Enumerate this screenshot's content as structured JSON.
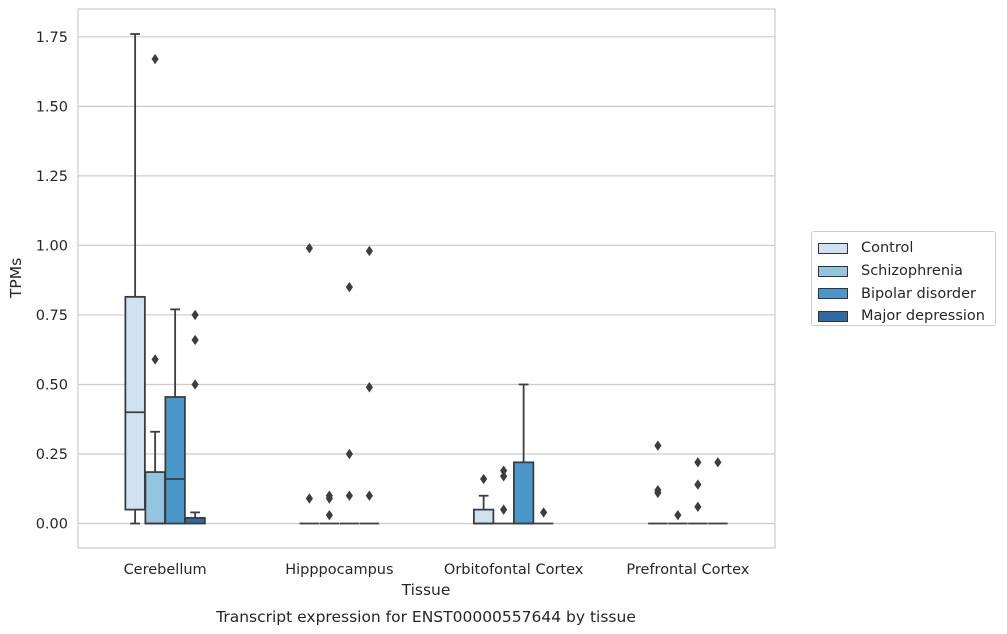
{
  "colors": {
    "Control": "#d0e1f2",
    "Schizophrenia": "#94c4df",
    "Bipolar disorder": "#4a98c9",
    "Major depression": "#2c6ba8",
    "grid": "#cccccc",
    "frame": "#cccccc",
    "box_line": "#3d3d3d"
  },
  "chart_data": {
    "type": "box",
    "title": "Transcript expression for ENST00000557644 by tissue",
    "xlabel": "Tissue",
    "ylabel": "TPMs",
    "ylim": [
      -0.088,
      1.85
    ],
    "yticks": [
      0.0,
      0.25,
      0.5,
      0.75,
      1.0,
      1.25,
      1.5,
      1.75
    ],
    "ytick_labels": [
      "0.00",
      "0.25",
      "0.50",
      "0.75",
      "1.00",
      "1.25",
      "1.50",
      "1.75"
    ],
    "grid": true,
    "legend_position": "right",
    "categories": [
      "Cerebellum",
      "Hipppocampus",
      "Orbitofontal Cortex",
      "Prefrontal Cortex"
    ],
    "series": [
      {
        "name": "Control",
        "boxes": [
          {
            "q1": 0.05,
            "median": 0.4,
            "q3": 0.815,
            "whisker_low": 0.0,
            "whisker_high": 1.76,
            "outliers": []
          },
          {
            "q1": 0.0,
            "median": 0.0,
            "q3": 0.0,
            "whisker_low": 0.0,
            "whisker_high": 0.0,
            "outliers": [
              0.09,
              0.99
            ]
          },
          {
            "q1": 0.0,
            "median": 0.0,
            "q3": 0.05,
            "whisker_low": 0.0,
            "whisker_high": 0.1,
            "outliers": [
              0.16
            ]
          },
          {
            "q1": 0.0,
            "median": 0.0,
            "q3": 0.0,
            "whisker_low": 0.0,
            "whisker_high": 0.0,
            "outliers": [
              0.11,
              0.12,
              0.28
            ]
          }
        ]
      },
      {
        "name": "Schizophrenia",
        "boxes": [
          {
            "q1": 0.0,
            "median": 0.0,
            "q3": 0.185,
            "whisker_low": 0.0,
            "whisker_high": 0.33,
            "outliers": [
              0.59,
              1.67
            ]
          },
          {
            "q1": 0.0,
            "median": 0.0,
            "q3": 0.0,
            "whisker_low": 0.0,
            "whisker_high": 0.0,
            "outliers": [
              0.03,
              0.09,
              0.1
            ]
          },
          {
            "q1": 0.0,
            "median": 0.0,
            "q3": 0.0,
            "whisker_low": 0.0,
            "whisker_high": 0.0,
            "outliers": [
              0.05,
              0.17,
              0.19
            ]
          },
          {
            "q1": 0.0,
            "median": 0.0,
            "q3": 0.0,
            "whisker_low": 0.0,
            "whisker_high": 0.0,
            "outliers": [
              0.03
            ]
          }
        ]
      },
      {
        "name": "Bipolar disorder",
        "boxes": [
          {
            "q1": 0.0,
            "median": 0.16,
            "q3": 0.455,
            "whisker_low": 0.0,
            "whisker_high": 0.77,
            "outliers": []
          },
          {
            "q1": 0.0,
            "median": 0.0,
            "q3": 0.0,
            "whisker_low": 0.0,
            "whisker_high": 0.0,
            "outliers": [
              0.1,
              0.25,
              0.85
            ]
          },
          {
            "q1": 0.0,
            "median": 0.0,
            "q3": 0.22,
            "whisker_low": 0.0,
            "whisker_high": 0.5,
            "outliers": []
          },
          {
            "q1": 0.0,
            "median": 0.0,
            "q3": 0.0,
            "whisker_low": 0.0,
            "whisker_high": 0.0,
            "outliers": [
              0.06,
              0.14,
              0.22
            ]
          }
        ]
      },
      {
        "name": "Major depression",
        "boxes": [
          {
            "q1": 0.0,
            "median": 0.02,
            "q3": 0.02,
            "whisker_low": 0.0,
            "whisker_high": 0.04,
            "outliers": [
              0.5,
              0.66,
              0.75
            ]
          },
          {
            "q1": 0.0,
            "median": 0.0,
            "q3": 0.0,
            "whisker_low": 0.0,
            "whisker_high": 0.0,
            "outliers": [
              0.1,
              0.49,
              0.98
            ]
          },
          {
            "q1": 0.0,
            "median": 0.0,
            "q3": 0.0,
            "whisker_low": 0.0,
            "whisker_high": 0.0,
            "outliers": [
              0.04
            ]
          },
          {
            "q1": 0.0,
            "median": 0.0,
            "q3": 0.0,
            "whisker_low": 0.0,
            "whisker_high": 0.0,
            "outliers": [
              0.22
            ]
          }
        ]
      }
    ]
  }
}
